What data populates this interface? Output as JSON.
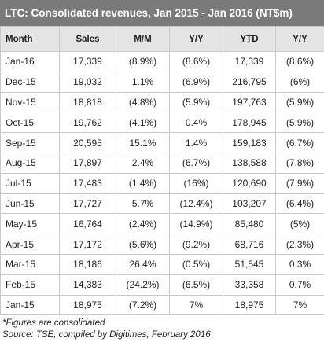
{
  "header": {
    "title": "LTC: Consolidated revenues, Jan 2015 - Jan 2016 (NT$m)"
  },
  "table": {
    "columns": [
      "Month",
      "Sales",
      "M/M",
      "Y/Y",
      "YTD",
      "Y/Y"
    ],
    "rows": [
      [
        "Jan-16",
        "17,339",
        "(8.9%)",
        "(8.6%)",
        "17,339",
        "(8.6%)"
      ],
      [
        "Dec-15",
        "19,032",
        "1.1%",
        "(6.9%)",
        "216,795",
        "(6%)"
      ],
      [
        "Nov-15",
        "18,818",
        "(4.8%)",
        "(5.9%)",
        "197,763",
        "(5.9%)"
      ],
      [
        "Oct-15",
        "19,762",
        "(4.1%)",
        "0.4%",
        "178,945",
        "(5.9%)"
      ],
      [
        "Sep-15",
        "20,595",
        "15.1%",
        "1.4%",
        "159,183",
        "(6.7%)"
      ],
      [
        "Aug-15",
        "17,897",
        "2.4%",
        "(6.7%)",
        "138,588",
        "(7.8%)"
      ],
      [
        "Jul-15",
        "17,483",
        "(1.4%)",
        "(16%)",
        "120,690",
        "(7.9%)"
      ],
      [
        "Jun-15",
        "17,727",
        "5.7%",
        "(12.4%)",
        "103,207",
        "(6.4%)"
      ],
      [
        "May-15",
        "16,764",
        "(2.4%)",
        "(14.9%)",
        "85,480",
        "(5%)"
      ],
      [
        "Apr-15",
        "17,172",
        "(5.6%)",
        "(9.2%)",
        "68,716",
        "(2.3%)"
      ],
      [
        "Mar-15",
        "18,186",
        "26.4%",
        "(0.5%)",
        "51,545",
        "0.3%"
      ],
      [
        "Feb-15",
        "14,383",
        "(24.2%)",
        "(6.5%)",
        "33,358",
        "0.7%"
      ],
      [
        "Jan-15",
        "18,975",
        "(7.2%)",
        "7%",
        "18,975",
        "7%"
      ]
    ]
  },
  "footer": {
    "notes": [
      "*Figures are consolidated",
      "Source: TSE, compiled by Digitimes, February 2016"
    ]
  }
}
